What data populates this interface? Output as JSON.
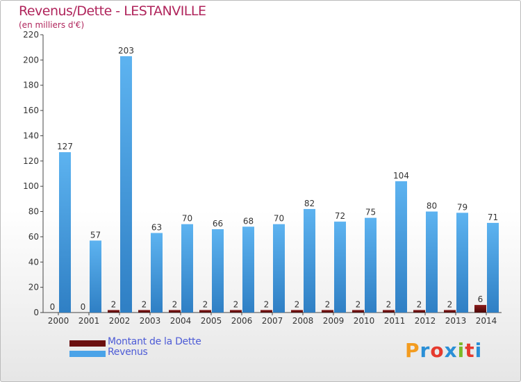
{
  "title": "Revenus/Dette - LESTANVILLE",
  "subtitle": "(en milliers d'€)",
  "logo": {
    "text": "Proxiti",
    "colors": [
      "#f39c1f",
      "#2a8fd6",
      "#e63a2e",
      "#2a8fd6",
      "#7bb928",
      "#e63a2e",
      "#2a8fd6"
    ]
  },
  "chart_data": {
    "type": "bar",
    "categories": [
      "2000",
      "2001",
      "2002",
      "2003",
      "2004",
      "2005",
      "2006",
      "2007",
      "2008",
      "2009",
      "2010",
      "2011",
      "2012",
      "2013",
      "2014"
    ],
    "series": [
      {
        "name": "Montant de la Dette",
        "color": "#6b0f0f",
        "values": [
          0,
          0,
          2,
          2,
          2,
          2,
          2,
          2,
          2,
          2,
          2,
          2,
          2,
          2,
          6
        ]
      },
      {
        "name": "Revenus",
        "color": "#4aa3e8",
        "values": [
          127,
          57,
          203,
          63,
          70,
          66,
          68,
          70,
          82,
          72,
          75,
          104,
          80,
          79,
          71
        ]
      }
    ],
    "ylim": [
      0,
      220
    ],
    "yticks": [
      0,
      20,
      40,
      60,
      80,
      100,
      120,
      140,
      160,
      180,
      200,
      220
    ],
    "grid": false,
    "legend": "bottom-left"
  }
}
